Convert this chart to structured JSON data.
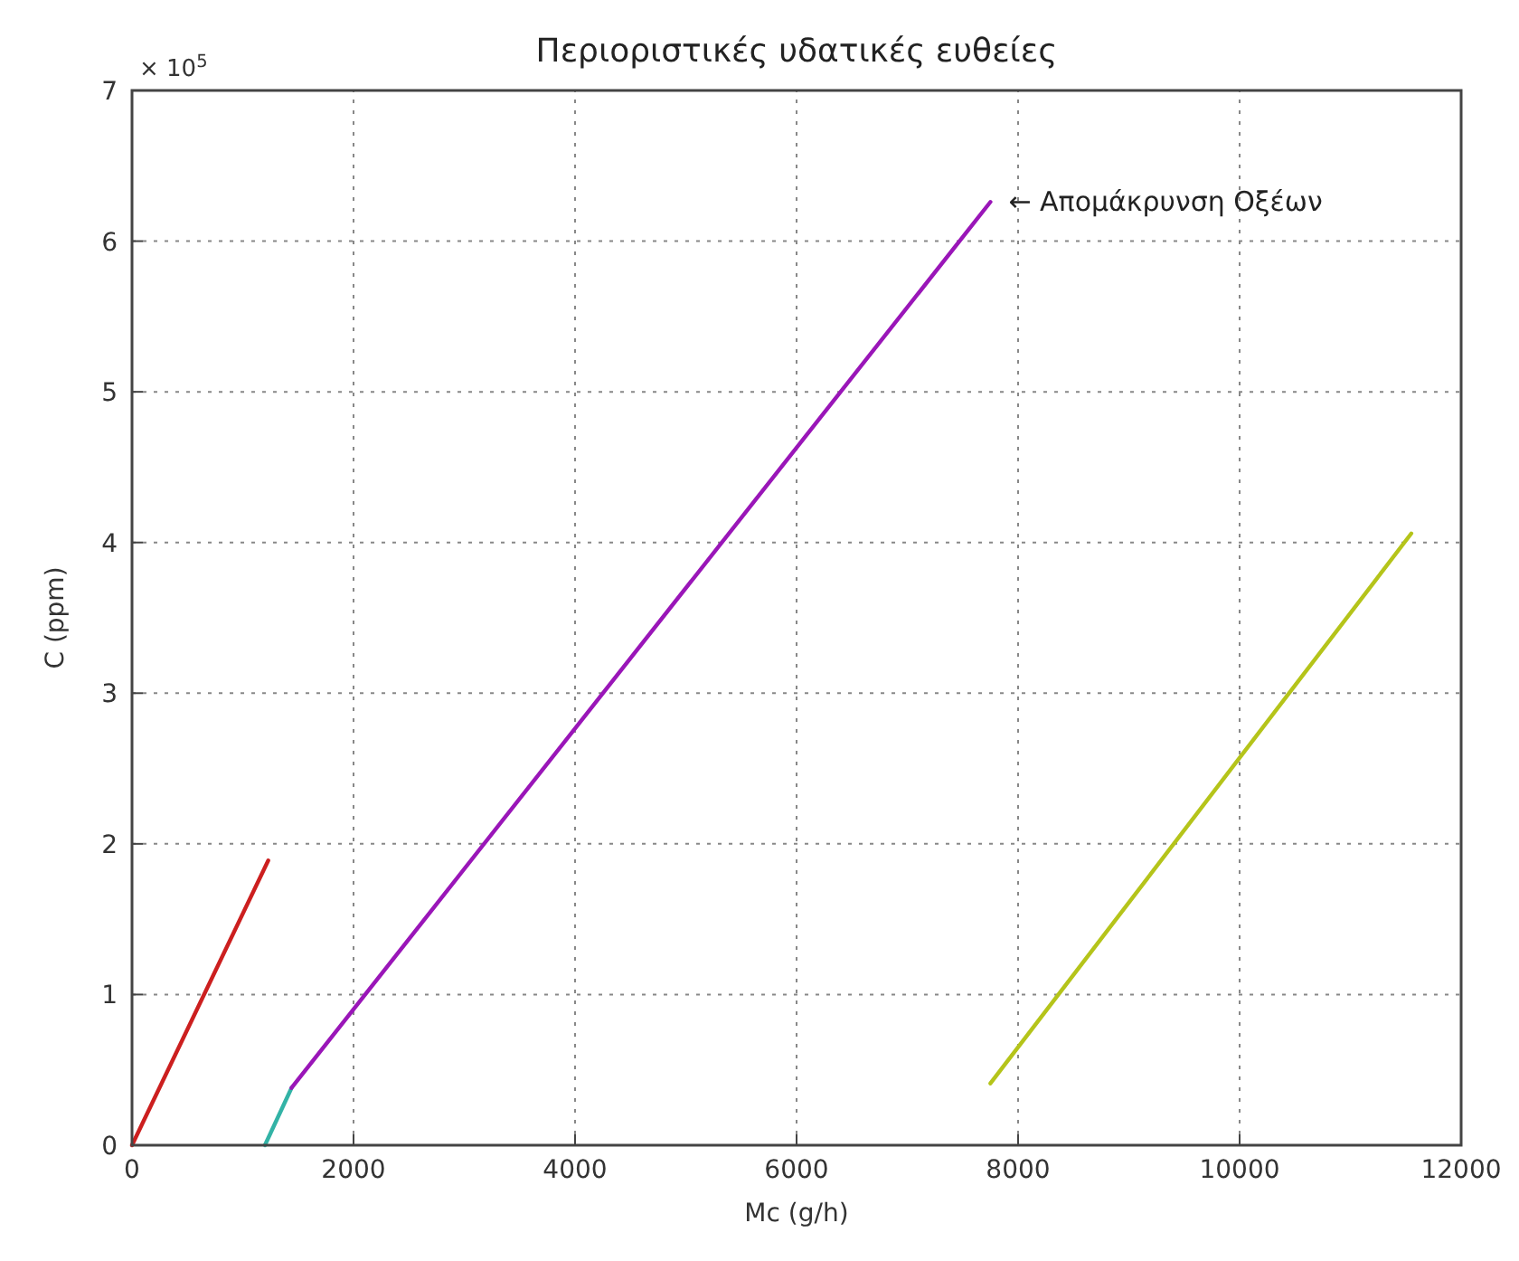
{
  "chart_data": {
    "type": "line",
    "title": "Περιοριστικές υδατικές ευθείες",
    "xlabel": "Mc (g/h)",
    "ylabel": "C (ppm)",
    "xlim": [
      0,
      12000
    ],
    "xticks": [
      0,
      2000,
      4000,
      6000,
      8000,
      10000,
      12000
    ],
    "ylim": [
      0,
      7
    ],
    "yticks": [
      0,
      1,
      2,
      3,
      4,
      5,
      6,
      7
    ],
    "grid": true,
    "line_style": "solid",
    "marker": "none",
    "series": [
      {
        "color": "#cc1f1f",
        "x": [
          0,
          1230
        ],
        "values": [
          0,
          1.89
        ]
      },
      {
        "color": "#33b3a6",
        "x": [
          1200,
          1440
        ],
        "values": [
          0,
          0.38
        ]
      },
      {
        "color": "#9a16b8",
        "x": [
          1440,
          7750
        ],
        "values": [
          0.38,
          6.26
        ]
      },
      {
        "color": "#b5c41a",
        "x": [
          7750,
          11550
        ],
        "values": [
          0.41,
          4.06
        ]
      }
    ],
    "annotations": [
      "× 10$^{5}$",
      {
        "text": "← Απομάκρυνση Οξέων",
        "x": 7750,
        "y": 6.26
      }
    ]
  }
}
